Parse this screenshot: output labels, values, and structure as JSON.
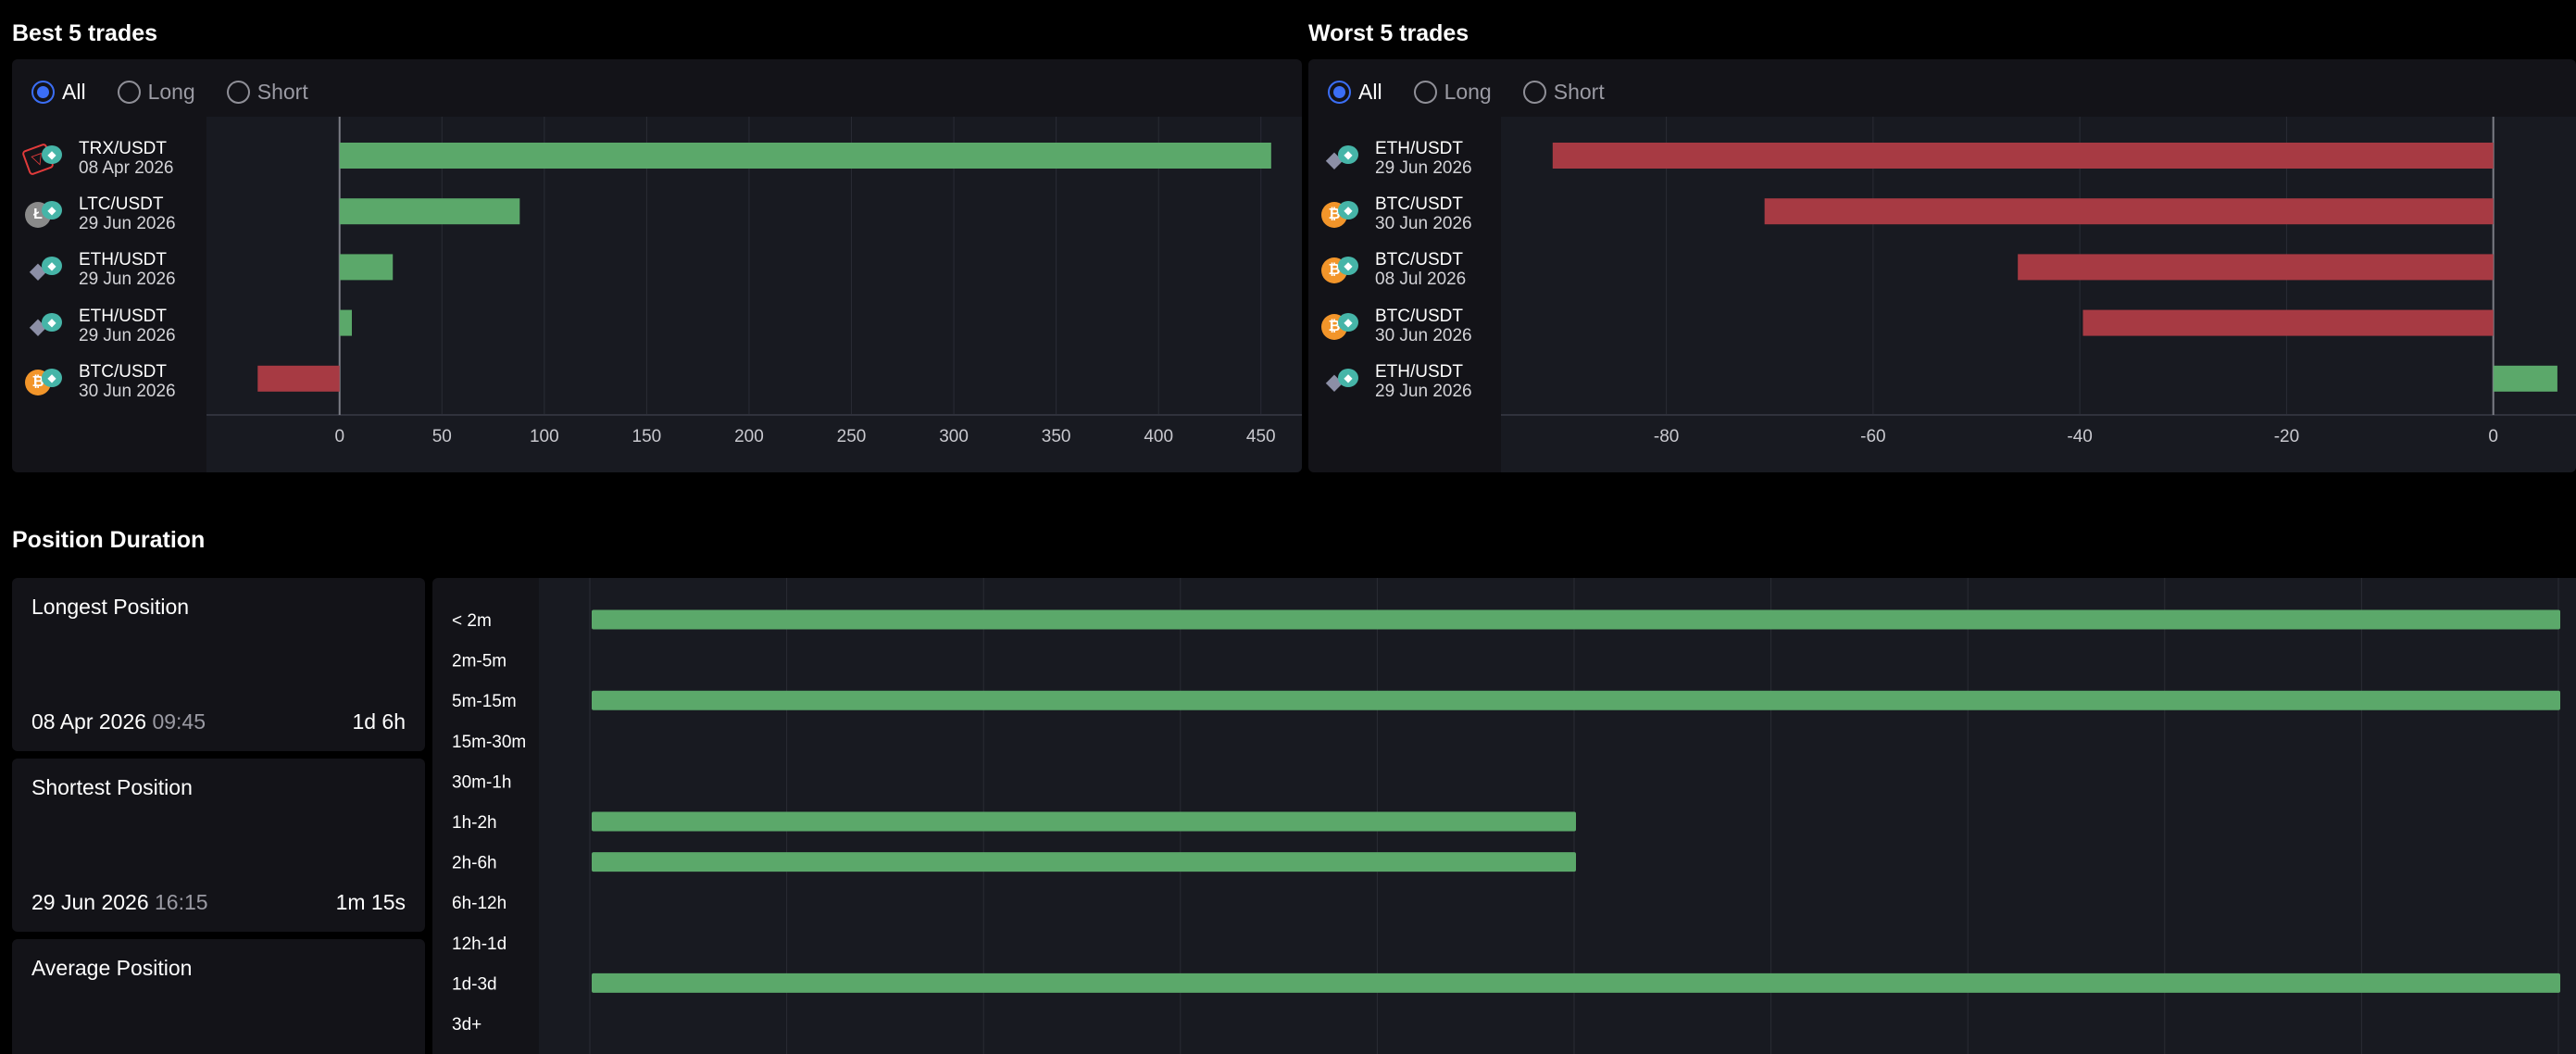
{
  "best": {
    "title": "Best 5 trades",
    "filters": [
      "All",
      "Long",
      "Short"
    ],
    "selected_filter": "All",
    "trades": [
      {
        "pair": "TRX/USDT",
        "date": "08 Apr 2026",
        "coin": "TRX"
      },
      {
        "pair": "LTC/USDT",
        "date": "29 Jun 2026",
        "coin": "LTC"
      },
      {
        "pair": "ETH/USDT",
        "date": "29 Jun 2026",
        "coin": "ETH"
      },
      {
        "pair": "ETH/USDT",
        "date": "29 Jun 2026",
        "coin": "ETH"
      },
      {
        "pair": "BTC/USDT",
        "date": "30 Jun 2026",
        "coin": "BTC"
      }
    ]
  },
  "worst": {
    "title": "Worst 5 trades",
    "filters": [
      "All",
      "Long",
      "Short"
    ],
    "selected_filter": "All",
    "trades": [
      {
        "pair": "ETH/USDT",
        "date": "29 Jun 2026",
        "coin": "ETH"
      },
      {
        "pair": "BTC/USDT",
        "date": "30 Jun 2026",
        "coin": "BTC"
      },
      {
        "pair": "BTC/USDT",
        "date": "08 Jul 2026",
        "coin": "BTC"
      },
      {
        "pair": "BTC/USDT",
        "date": "30 Jun 2026",
        "coin": "BTC"
      },
      {
        "pair": "ETH/USDT",
        "date": "29 Jun 2026",
        "coin": "ETH"
      }
    ]
  },
  "duration": {
    "title": "Position Duration",
    "longest": {
      "label": "Longest Position",
      "date": "08 Apr 2026",
      "time": "09:45",
      "value": "1d 6h"
    },
    "shortest": {
      "label": "Shortest Position",
      "date": "29 Jun 2026",
      "time": "16:15",
      "value": "1m 15s"
    },
    "average": {
      "label": "Average Position"
    }
  },
  "colors": {
    "positive": "#5ba86a",
    "negative": "#a73a43",
    "accent": "#3b6ef5",
    "panel": "#131318",
    "chart_bg": "#181a21"
  },
  "chart_data": [
    {
      "type": "bar",
      "orientation": "horizontal",
      "categories": [
        "TRX/USDT 08 Apr 2026",
        "LTC/USDT 29 Jun 2026",
        "ETH/USDT 29 Jun 2026",
        "ETH/USDT 29 Jun 2026",
        "BTC/USDT 30 Jun 2026"
      ],
      "values": [
        455,
        88,
        26,
        6,
        -40
      ],
      "xlim": [
        -65,
        470
      ],
      "xticks": [
        0,
        50,
        100,
        150,
        200,
        250,
        300,
        350,
        400,
        450
      ],
      "grid": true
    },
    {
      "type": "bar",
      "orientation": "horizontal",
      "categories": [
        "ETH/USDT 29 Jun 2026",
        "BTC/USDT 30 Jun 2026",
        "BTC/USDT 08 Jul 2026",
        "BTC/USDT 30 Jun 2026",
        "ETH/USDT 29 Jun 2026"
      ],
      "values": [
        -91,
        -70.5,
        -46,
        -39.7,
        6.2
      ],
      "xlim": [
        -96,
        8
      ],
      "xticks": [
        -80,
        -60,
        -40,
        -20,
        0
      ],
      "grid": true
    },
    {
      "type": "bar",
      "orientation": "horizontal",
      "categories": [
        "< 2m",
        "2m-5m",
        "5m-15m",
        "15m-30m",
        "30m-1h",
        "1h-2h",
        "2h-6h",
        "6h-12h",
        "12h-1d",
        "1d-3d",
        "3d+"
      ],
      "values": [
        2,
        0,
        2,
        0,
        0,
        1,
        1,
        0,
        0,
        2,
        0
      ],
      "xlim": [
        0,
        2
      ],
      "grid": true
    }
  ]
}
